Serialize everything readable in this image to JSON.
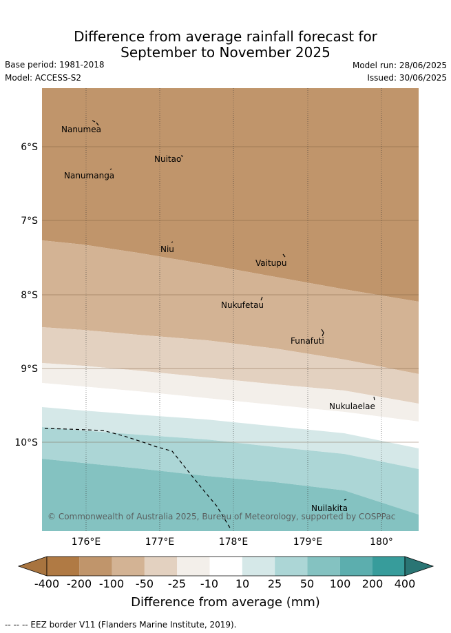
{
  "title_line1": "Difference from average rainfall forecast for",
  "title_line2": "September to November 2025",
  "meta": {
    "base_period": "Base period: 1981-2018",
    "model": "Model: ACCESS-S2",
    "model_run": "Model run: 28/06/2025",
    "issued": "Issued: 30/06/2025"
  },
  "map": {
    "lat_labels": [
      "6°S",
      "7°S",
      "8°S",
      "9°S",
      "10°S"
    ],
    "lon_labels": [
      "176°E",
      "177°E",
      "178°E",
      "179°E",
      "180°"
    ],
    "places": [
      "Nanumea",
      "Nuitao",
      "Nanumanga",
      "Niu",
      "Vaitupu",
      "Nukufetau",
      "Funafuti",
      "Nukulaelae",
      "Nuilakita"
    ],
    "copyright": "© Commonwealth of Australia 2025, Bureau of Meteorology, supported by COSPPac",
    "band_colors": [
      "#c0956b",
      "#d3b394",
      "#e3d1c0",
      "#f3efea",
      "#ffffff",
      "#d5e8e8",
      "#acd6d6",
      "#84c2c1"
    ]
  },
  "colorbar": {
    "title": "Difference from average (mm)",
    "labels": [
      "-400",
      "-200",
      "-100",
      "-50",
      "-25",
      "-10",
      "10",
      "25",
      "50",
      "100",
      "200",
      "400"
    ],
    "colors": [
      "#a8743f",
      "#b07a44",
      "#c0956b",
      "#d3b394",
      "#e3d1c0",
      "#f3efea",
      "#ffffff",
      "#d5e8e8",
      "#acd6d6",
      "#84c2c1",
      "#5caeae",
      "#379c9b",
      "#2a7574"
    ]
  },
  "footer": "--  --  -- EEZ border V11 (Flanders Marine Institute, 2019)."
}
